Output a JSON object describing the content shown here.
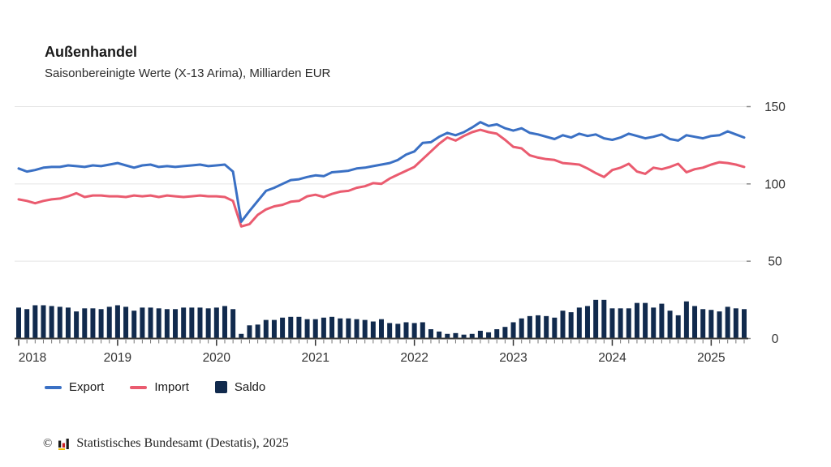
{
  "page": {
    "background": "#ffffff"
  },
  "footer": {
    "copyright": "©",
    "text": "Statistisches Bundesamt (Destatis), 2025",
    "logo_icon": "destatis-bar-chart-logo",
    "logo_colors": {
      "black": "#1a1a1a",
      "red": "#cc2127",
      "gold": "#f0bb00"
    }
  },
  "chart_data": {
    "type": "line",
    "note": "Combo chart: Export and Import are monthly lines, Saldo is a monthly bar series",
    "title": "Außenhandel",
    "subtitle": "Saisonbereinigte Werte (X-13 Arima), Milliarden EUR",
    "ylabel": "Milliarden EUR",
    "x_start": "2018-01",
    "x_freq": "monthly",
    "x_months": 89,
    "x_end": "2025-05",
    "year_labels": [
      "2018",
      "2019",
      "2020",
      "2021",
      "2022",
      "2023",
      "2024",
      "2025"
    ],
    "yticks": [
      0,
      50,
      100,
      150
    ],
    "ylim": [
      0,
      150
    ],
    "grid": "horizontal",
    "axis_side": "right",
    "legend_position": "bottom-left",
    "colors": {
      "grid": "#e4e4e4",
      "axis": "#3d3d3d",
      "tick": "#777777",
      "label": "#333333"
    },
    "series": [
      {
        "name": "Export",
        "type": "line",
        "color": "#3a70c4",
        "values": [
          110,
          108,
          109,
          110.5,
          111,
          111,
          112,
          111.5,
          111,
          112,
          111.5,
          112.5,
          113.5,
          112,
          110.5,
          112,
          112.5,
          111,
          111.5,
          111,
          111.5,
          112,
          112.5,
          111.5,
          112,
          112.5,
          108,
          75.5,
          82.5,
          89,
          95.5,
          97.5,
          100,
          102.5,
          103,
          104.5,
          105.5,
          105,
          107.5,
          108,
          108.5,
          110,
          110.5,
          111.5,
          112.5,
          113.5,
          115.5,
          119,
          121,
          126.5,
          127,
          130.5,
          133,
          131.5,
          133.5,
          136.5,
          140,
          137.5,
          138.5,
          136,
          134.5,
          136,
          133,
          132,
          130.5,
          129,
          131.5,
          130,
          132.5,
          131,
          132,
          129.5,
          128.5,
          130,
          132.5,
          131,
          129.5,
          130.5,
          132,
          129,
          128,
          131.5,
          130.5,
          129.5,
          131,
          131.5,
          134,
          132,
          130
        ]
      },
      {
        "name": "Import",
        "type": "line",
        "color": "#ea5b6f",
        "values": [
          90,
          89,
          87.5,
          89,
          90,
          90.5,
          92,
          94,
          91.5,
          92.5,
          92.5,
          92,
          92,
          91.5,
          92.5,
          92,
          92.5,
          91.5,
          92.5,
          92,
          91.5,
          92,
          92.5,
          92,
          92,
          91.5,
          89,
          72.5,
          74,
          80,
          83.5,
          85.5,
          86.5,
          88.5,
          89,
          92,
          93,
          91.5,
          93.5,
          95,
          95.5,
          97.5,
          98.5,
          100.5,
          100,
          103.5,
          106,
          108.5,
          111,
          116,
          121,
          126,
          130,
          128,
          131,
          133.5,
          135,
          133.5,
          132.5,
          128.5,
          124,
          123,
          118.5,
          117,
          116,
          115.5,
          113.5,
          113,
          112.5,
          110,
          107,
          104.5,
          109,
          110.5,
          113,
          108,
          106.5,
          110.5,
          109.5,
          111,
          113,
          107.5,
          109.5,
          110.5,
          112.5,
          114,
          113.5,
          112.5,
          111
        ]
      },
      {
        "name": "Saldo",
        "type": "bar",
        "color": "#112a4d",
        "values": [
          20,
          19,
          21.5,
          21.5,
          21,
          20.5,
          20,
          17.5,
          19.5,
          19.5,
          19,
          20.5,
          21.5,
          20.5,
          18,
          20,
          20,
          19.5,
          19,
          19,
          20,
          20,
          20,
          19.5,
          20,
          21,
          19,
          3,
          8.5,
          9,
          12,
          12,
          13.5,
          14,
          14,
          12.5,
          12.5,
          13.5,
          14,
          13,
          13,
          12.5,
          12,
          11,
          12.5,
          10,
          9.5,
          10.5,
          10,
          10.5,
          6,
          4.5,
          3,
          3.5,
          2.5,
          3,
          5,
          4,
          6,
          7.5,
          10.5,
          13,
          14.5,
          15,
          14.5,
          13.5,
          18,
          17,
          20,
          21,
          25,
          25,
          19.5,
          19.5,
          19.5,
          23,
          23,
          20,
          22.5,
          18,
          15,
          24,
          21,
          19,
          18.5,
          17.5,
          20.5,
          19.5,
          19
        ]
      }
    ]
  }
}
